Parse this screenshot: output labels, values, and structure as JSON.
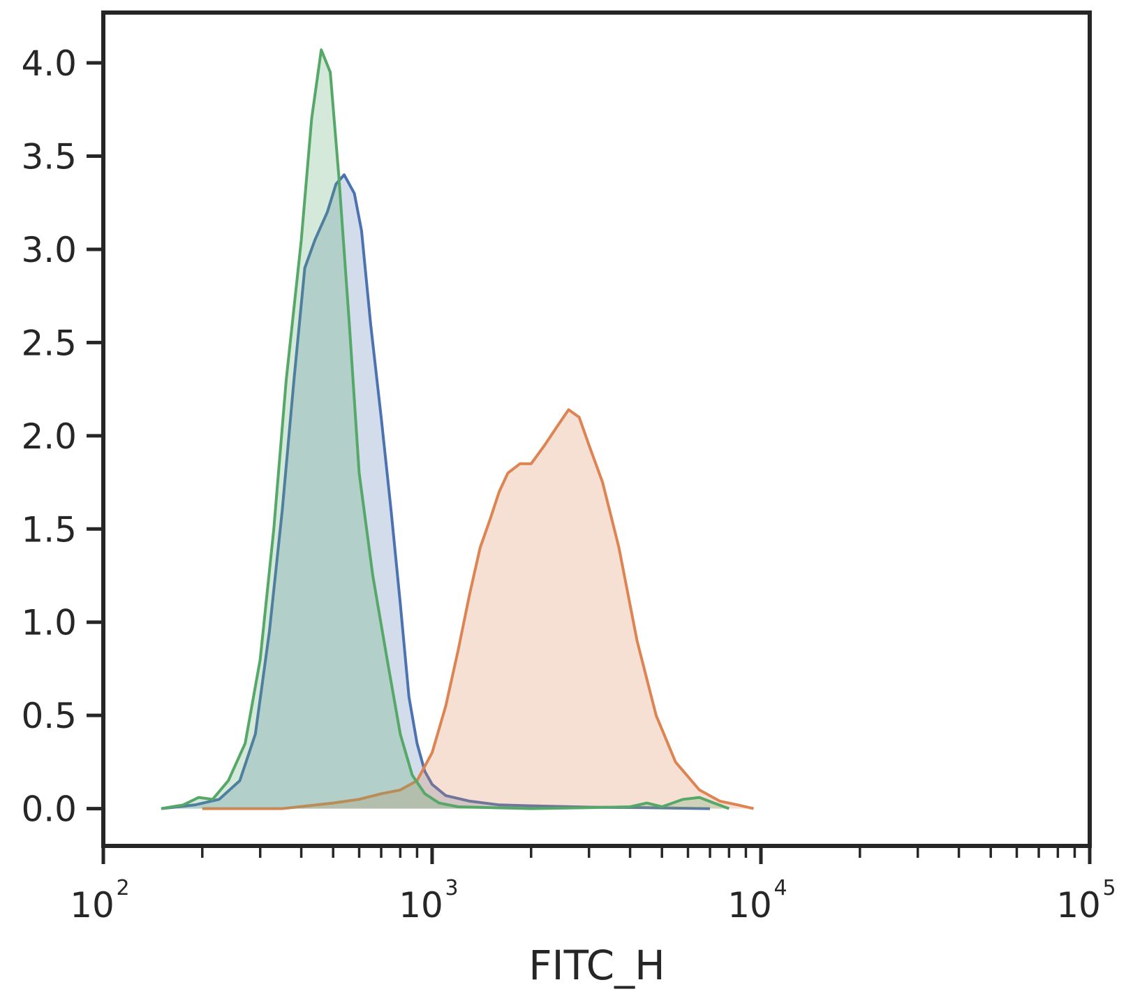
{
  "chart_data": {
    "type": "area",
    "title": "",
    "xlabel": "FITC_H",
    "ylabel": "",
    "x_scale": "log",
    "xlim": [
      100,
      100000
    ],
    "ylim": [
      -0.2,
      4.27
    ],
    "grid": false,
    "legend": "none",
    "x_ticks": [
      {
        "value": 100,
        "base": "10",
        "exp": "2"
      },
      {
        "value": 1000,
        "base": "10",
        "exp": "3"
      },
      {
        "value": 10000,
        "base": "10",
        "exp": "4"
      },
      {
        "value": 100000,
        "base": "10",
        "exp": "5"
      }
    ],
    "y_ticks": [
      {
        "value": 0.0,
        "label": "0.0"
      },
      {
        "value": 0.5,
        "label": "0.5"
      },
      {
        "value": 1.0,
        "label": "1.0"
      },
      {
        "value": 1.5,
        "label": "1.5"
      },
      {
        "value": 2.0,
        "label": "2.0"
      },
      {
        "value": 2.5,
        "label": "2.5"
      },
      {
        "value": 3.0,
        "label": "3.0"
      },
      {
        "value": 3.5,
        "label": "3.5"
      },
      {
        "value": 4.0,
        "label": "4.0"
      }
    ],
    "series": [
      {
        "color": "#4c72b0",
        "fill_opacity": 0.25,
        "points": [
          [
            150,
            0.0
          ],
          [
            190,
            0.02
          ],
          [
            225,
            0.05
          ],
          [
            260,
            0.15
          ],
          [
            290,
            0.4
          ],
          [
            320,
            0.95
          ],
          [
            350,
            1.6
          ],
          [
            380,
            2.3
          ],
          [
            410,
            2.9
          ],
          [
            440,
            3.05
          ],
          [
            480,
            3.2
          ],
          [
            510,
            3.35
          ],
          [
            540,
            3.4
          ],
          [
            580,
            3.3
          ],
          [
            610,
            3.1
          ],
          [
            650,
            2.6
          ],
          [
            700,
            2.1
          ],
          [
            750,
            1.6
          ],
          [
            800,
            1.1
          ],
          [
            850,
            0.6
          ],
          [
            900,
            0.35
          ],
          [
            950,
            0.2
          ],
          [
            1000,
            0.13
          ],
          [
            1100,
            0.07
          ],
          [
            1300,
            0.04
          ],
          [
            1600,
            0.02
          ],
          [
            2000,
            0.015
          ],
          [
            3000,
            0.008
          ],
          [
            4500,
            0.005
          ],
          [
            7000,
            0.0
          ]
        ]
      },
      {
        "color": "#dd8452",
        "fill_opacity": 0.25,
        "points": [
          [
            200,
            0.0
          ],
          [
            350,
            0.0
          ],
          [
            500,
            0.03
          ],
          [
            600,
            0.05
          ],
          [
            700,
            0.08
          ],
          [
            800,
            0.1
          ],
          [
            900,
            0.15
          ],
          [
            1000,
            0.3
          ],
          [
            1100,
            0.55
          ],
          [
            1200,
            0.85
          ],
          [
            1300,
            1.15
          ],
          [
            1400,
            1.4
          ],
          [
            1500,
            1.55
          ],
          [
            1600,
            1.7
          ],
          [
            1700,
            1.8
          ],
          [
            1850,
            1.85
          ],
          [
            2000,
            1.85
          ],
          [
            2200,
            1.95
          ],
          [
            2400,
            2.05
          ],
          [
            2600,
            2.14
          ],
          [
            2800,
            2.1
          ],
          [
            3000,
            1.95
          ],
          [
            3300,
            1.75
          ],
          [
            3700,
            1.4
          ],
          [
            4200,
            0.9
          ],
          [
            4800,
            0.5
          ],
          [
            5500,
            0.25
          ],
          [
            6500,
            0.1
          ],
          [
            7500,
            0.04
          ],
          [
            8500,
            0.02
          ],
          [
            9500,
            0.0
          ]
        ]
      },
      {
        "color": "#55a868",
        "fill_opacity": 0.25,
        "points": [
          [
            150,
            0.0
          ],
          [
            175,
            0.02
          ],
          [
            195,
            0.06
          ],
          [
            215,
            0.05
          ],
          [
            240,
            0.15
          ],
          [
            270,
            0.35
          ],
          [
            300,
            0.8
          ],
          [
            330,
            1.5
          ],
          [
            360,
            2.3
          ],
          [
            400,
            3.05
          ],
          [
            430,
            3.7
          ],
          [
            460,
            4.07
          ],
          [
            490,
            3.95
          ],
          [
            520,
            3.4
          ],
          [
            560,
            2.6
          ],
          [
            600,
            1.8
          ],
          [
            660,
            1.25
          ],
          [
            730,
            0.8
          ],
          [
            800,
            0.4
          ],
          [
            870,
            0.18
          ],
          [
            950,
            0.08
          ],
          [
            1050,
            0.03
          ],
          [
            1200,
            0.01
          ],
          [
            2000,
            0.0
          ],
          [
            3000,
            0.005
          ],
          [
            4000,
            0.01
          ],
          [
            4500,
            0.03
          ],
          [
            5000,
            0.01
          ],
          [
            5800,
            0.05
          ],
          [
            6500,
            0.06
          ],
          [
            7200,
            0.03
          ],
          [
            8000,
            0.0
          ]
        ]
      }
    ]
  }
}
